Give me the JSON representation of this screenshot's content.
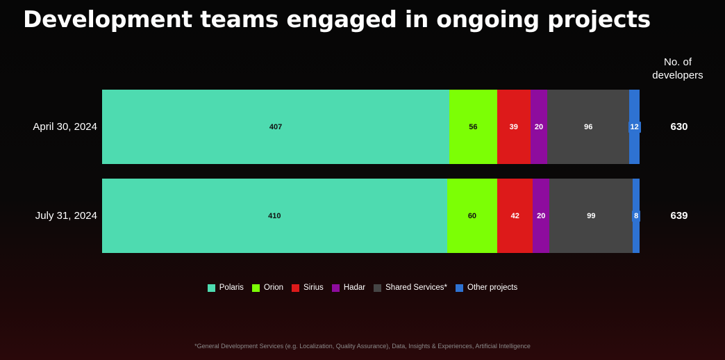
{
  "title": "Development teams engaged in ongoing projects",
  "total_header": "No. of developers",
  "footnote": "*General Development Services (e.g. Localization, Quality Assurance), Data, Insights & Experiences, Artificial Intelligence",
  "colors": {
    "Polaris": "#4edbb0",
    "Orion": "#7cff05",
    "Sirius": "#dd1a1a",
    "Hadar": "#8e0c9e",
    "Shared Services*": "#454545",
    "Other projects": "#2e72d2"
  },
  "chart_data": {
    "type": "bar",
    "orientation": "horizontal",
    "stacked": true,
    "categories": [
      "April 30, 2024",
      "July 31, 2024"
    ],
    "series": [
      {
        "name": "Polaris",
        "values": [
          407,
          410
        ]
      },
      {
        "name": "Orion",
        "values": [
          56,
          60
        ]
      },
      {
        "name": "Sirius",
        "values": [
          39,
          42
        ]
      },
      {
        "name": "Hadar",
        "values": [
          20,
          20
        ]
      },
      {
        "name": "Shared Services*",
        "values": [
          96,
          99
        ]
      },
      {
        "name": "Other projects",
        "values": [
          12,
          8
        ]
      }
    ],
    "totals": [
      630,
      639
    ],
    "legend": "bottom-center",
    "grid": false
  }
}
